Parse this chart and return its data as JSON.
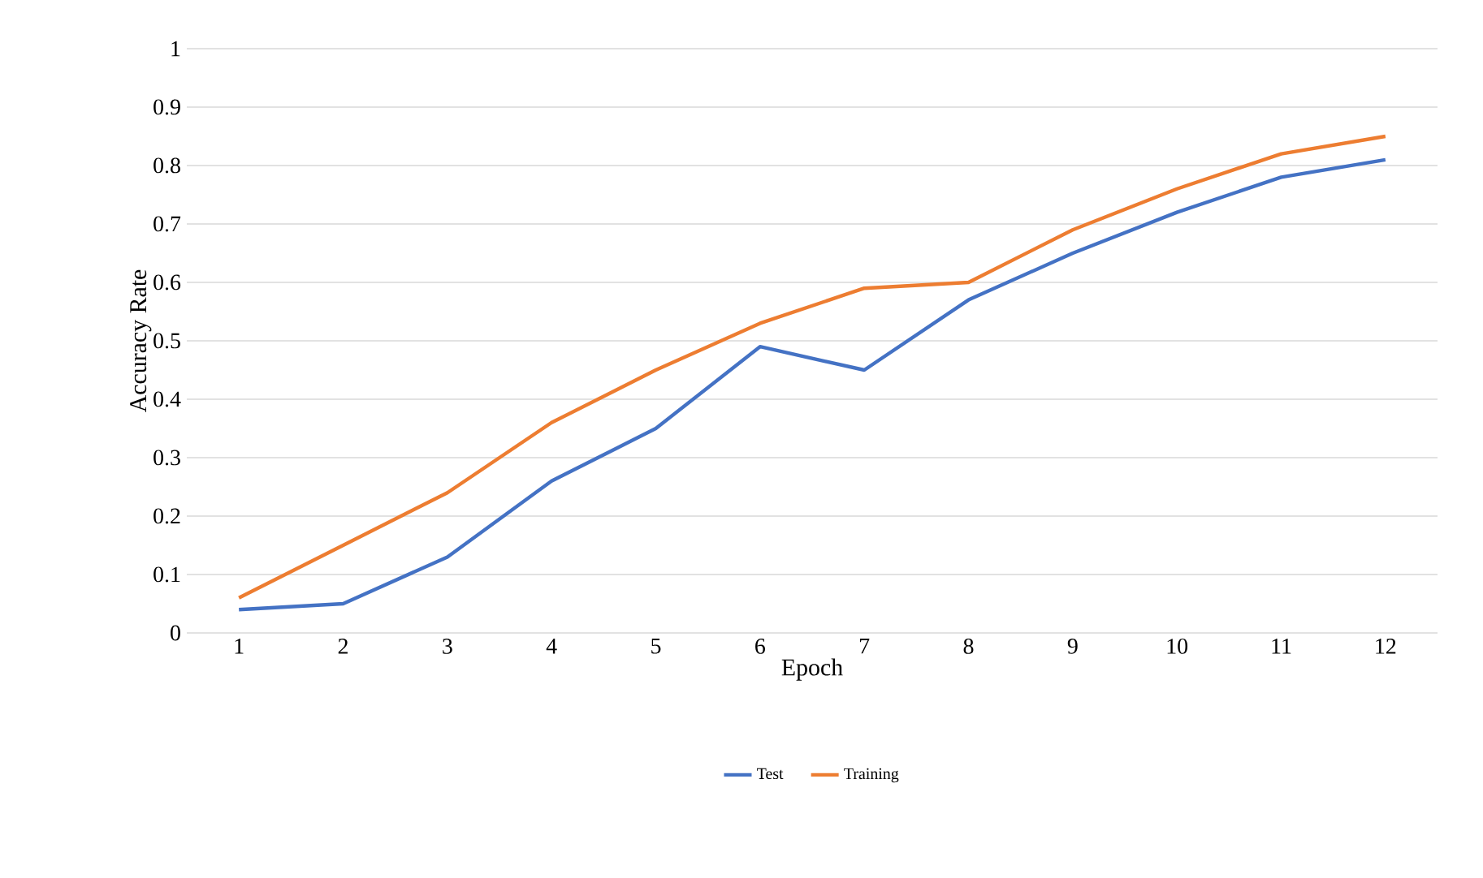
{
  "chart_data": {
    "type": "line",
    "xlabel": "Epoch",
    "ylabel": "Accuracy Rate",
    "categories": [
      "1",
      "2",
      "3",
      "4",
      "5",
      "6",
      "7",
      "8",
      "9",
      "10",
      "11",
      "12"
    ],
    "series": [
      {
        "name": "Test",
        "color": "#4472c4",
        "values": [
          0.04,
          0.05,
          0.13,
          0.26,
          0.35,
          0.49,
          0.45,
          0.57,
          0.65,
          0.72,
          0.78,
          0.81
        ]
      },
      {
        "name": "Training",
        "color": "#ed7d31",
        "values": [
          0.06,
          0.15,
          0.24,
          0.36,
          0.45,
          0.53,
          0.59,
          0.6,
          0.69,
          0.76,
          0.82,
          0.85
        ]
      }
    ],
    "ylim": [
      0,
      1
    ],
    "yticks": [
      0,
      0.1,
      0.2,
      0.3,
      0.4,
      0.5,
      0.6,
      0.7,
      0.8,
      0.9,
      1
    ],
    "grid": "y",
    "legend": "bottom",
    "marker": "none",
    "line_style": "solid"
  }
}
